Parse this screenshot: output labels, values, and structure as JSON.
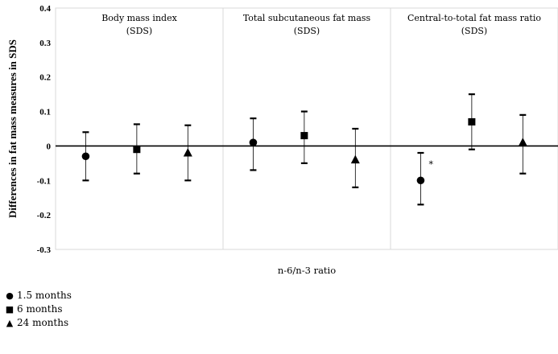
{
  "chart_data": {
    "type": "scatter",
    "ylabel": "Differences in fat mass measures in SDS",
    "xlabel": "n-6/n-3 ratio",
    "ylim": [
      -0.3,
      0.4
    ],
    "yticks": [
      "0.4",
      "0.3",
      "0.2",
      "0.1",
      "0",
      "-0.1",
      "-0.2",
      "-0.3"
    ],
    "grid": false,
    "legend_position": "bottom-left",
    "panels": [
      {
        "title_line1": "Body mass index",
        "title_line2": "(SDS)",
        "points": [
          {
            "series": "1.5 months",
            "marker": "circle",
            "y": -0.03,
            "lo": -0.1,
            "hi": 0.04,
            "annotation": ""
          },
          {
            "series": "6 months",
            "marker": "square",
            "y": -0.01,
            "lo": -0.08,
            "hi": 0.063,
            "annotation": ""
          },
          {
            "series": "24 months",
            "marker": "triangle",
            "y": -0.02,
            "lo": -0.1,
            "hi": 0.06,
            "annotation": ""
          }
        ]
      },
      {
        "title_line1": "Total subcutaneous fat mass",
        "title_line2": "(SDS)",
        "points": [
          {
            "series": "1.5 months",
            "marker": "circle",
            "y": 0.01,
            "lo": -0.07,
            "hi": 0.08,
            "annotation": ""
          },
          {
            "series": "6 months",
            "marker": "square",
            "y": 0.03,
            "lo": -0.05,
            "hi": 0.1,
            "annotation": ""
          },
          {
            "series": "24 months",
            "marker": "triangle",
            "y": -0.04,
            "lo": -0.12,
            "hi": 0.05,
            "annotation": ""
          }
        ]
      },
      {
        "title_line1": "Central-to-total fat mass ratio",
        "title_line2": "(SDS)",
        "points": [
          {
            "series": "1.5 months",
            "marker": "circle",
            "y": -0.1,
            "lo": -0.17,
            "hi": -0.02,
            "annotation": "*"
          },
          {
            "series": "6 months",
            "marker": "square",
            "y": 0.07,
            "lo": -0.01,
            "hi": 0.15,
            "annotation": ""
          },
          {
            "series": "24 months",
            "marker": "triangle",
            "y": 0.01,
            "lo": -0.08,
            "hi": 0.09,
            "annotation": ""
          }
        ]
      }
    ],
    "series": [
      {
        "name": "1.5 months",
        "marker": "circle"
      },
      {
        "name": "6 months",
        "marker": "square"
      },
      {
        "name": "24 months",
        "marker": "triangle"
      }
    ]
  },
  "legend": {
    "items": [
      {
        "symbol": "●",
        "label": "1.5 months"
      },
      {
        "symbol": "■",
        "label": "6 months"
      },
      {
        "symbol": "▲",
        "label": "24 months"
      }
    ]
  }
}
